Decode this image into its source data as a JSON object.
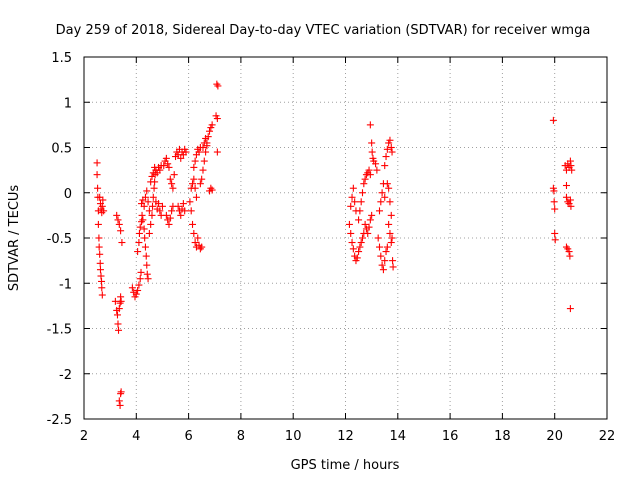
{
  "chart_data": {
    "type": "scatter",
    "title": "Day 259 of 2018, Sidereal Day-to-day VTEC variation (SDTVAR) for receiver wmga",
    "xlabel": "GPS time / hours",
    "ylabel": "SDTVAR / TECUs",
    "xlim": [
      2,
      22
    ],
    "ylim": [
      -2.5,
      1.5
    ],
    "xticks": [
      2,
      4,
      6,
      8,
      10,
      12,
      14,
      16,
      18,
      20,
      22
    ],
    "yticks": [
      -2.5,
      -2,
      -1.5,
      -1,
      -0.5,
      0,
      0.5,
      1,
      1.5
    ],
    "xtick_labels": [
      "2",
      "4",
      "6",
      "8",
      "10",
      "12",
      "14",
      "16",
      "18",
      "20",
      "22"
    ],
    "ytick_labels": [
      "-2.5",
      "-2",
      "-1.5",
      "-1",
      "-0.5",
      "0",
      "0.5",
      "1",
      "1.5"
    ],
    "grid": true,
    "marker": "+",
    "marker_color": "#ff0000",
    "series": [
      {
        "name": "SDTVAR",
        "points": [
          [
            2.5,
            0.33
          ],
          [
            2.5,
            0.2
          ],
          [
            2.52,
            0.05
          ],
          [
            2.53,
            -0.05
          ],
          [
            2.55,
            -0.2
          ],
          [
            2.55,
            -0.35
          ],
          [
            2.57,
            -0.5
          ],
          [
            2.58,
            -0.6
          ],
          [
            2.6,
            -0.68
          ],
          [
            2.62,
            -0.78
          ],
          [
            2.63,
            -0.85
          ],
          [
            2.65,
            -0.92
          ],
          [
            2.67,
            -0.98
          ],
          [
            2.68,
            -1.05
          ],
          [
            2.7,
            -1.13
          ],
          [
            2.6,
            -0.05
          ],
          [
            2.63,
            -0.12
          ],
          [
            2.65,
            -0.18
          ],
          [
            2.68,
            -0.22
          ],
          [
            2.7,
            -0.15
          ],
          [
            2.72,
            -0.08
          ],
          [
            2.75,
            -0.2
          ],
          [
            3.2,
            -1.2
          ],
          [
            3.25,
            -1.3
          ],
          [
            3.28,
            -1.35
          ],
          [
            3.3,
            -1.45
          ],
          [
            3.32,
            -1.52
          ],
          [
            3.35,
            -1.28
          ],
          [
            3.38,
            -1.22
          ],
          [
            3.4,
            -1.15
          ],
          [
            3.42,
            -1.2
          ],
          [
            3.25,
            -0.25
          ],
          [
            3.3,
            -0.3
          ],
          [
            3.35,
            -0.35
          ],
          [
            3.4,
            -0.42
          ],
          [
            3.45,
            -0.55
          ],
          [
            3.35,
            -2.3
          ],
          [
            3.38,
            -2.35
          ],
          [
            3.4,
            -2.22
          ],
          [
            3.42,
            -2.2
          ],
          [
            3.85,
            -1.05
          ],
          [
            3.9,
            -1.1
          ],
          [
            3.95,
            -1.15
          ],
          [
            4.0,
            -1.12
          ],
          [
            4.05,
            -1.08
          ],
          [
            4.1,
            -1.02
          ],
          [
            4.15,
            -0.95
          ],
          [
            4.18,
            -0.88
          ],
          [
            4.05,
            -0.65
          ],
          [
            4.1,
            -0.55
          ],
          [
            4.12,
            -0.45
          ],
          [
            4.15,
            -0.38
          ],
          [
            4.2,
            -0.32
          ],
          [
            4.22,
            -0.25
          ],
          [
            4.25,
            -0.3
          ],
          [
            4.3,
            -0.4
          ],
          [
            4.32,
            -0.5
          ],
          [
            4.35,
            -0.6
          ],
          [
            4.38,
            -0.7
          ],
          [
            4.4,
            -0.8
          ],
          [
            4.42,
            -0.9
          ],
          [
            4.45,
            -0.95
          ],
          [
            4.2,
            -0.12
          ],
          [
            4.25,
            -0.08
          ],
          [
            4.3,
            -0.15
          ],
          [
            4.35,
            -0.05
          ],
          [
            4.4,
            0.02
          ],
          [
            4.45,
            -0.1
          ],
          [
            4.5,
            -0.2
          ],
          [
            4.5,
            -0.45
          ],
          [
            4.55,
            -0.35
          ],
          [
            4.6,
            -0.25
          ],
          [
            4.62,
            -0.15
          ],
          [
            4.65,
            -0.05
          ],
          [
            4.68,
            0.05
          ],
          [
            4.7,
            0.12
          ],
          [
            4.72,
            0.2
          ],
          [
            4.75,
            0.25
          ],
          [
            4.8,
            0.22
          ],
          [
            4.85,
            0.28
          ],
          [
            4.9,
            0.25
          ],
          [
            4.95,
            0.3
          ],
          [
            4.55,
            0.12
          ],
          [
            4.6,
            0.18
          ],
          [
            4.65,
            0.22
          ],
          [
            4.7,
            0.28
          ],
          [
            4.75,
            -0.1
          ],
          [
            4.8,
            -0.18
          ],
          [
            4.85,
            -0.12
          ],
          [
            4.9,
            -0.2
          ],
          [
            4.95,
            -0.25
          ],
          [
            5.0,
            -0.15
          ],
          [
            5.05,
            0.3
          ],
          [
            5.1,
            0.35
          ],
          [
            5.15,
            0.38
          ],
          [
            5.2,
            0.32
          ],
          [
            5.25,
            0.28
          ],
          [
            5.15,
            -0.25
          ],
          [
            5.2,
            -0.3
          ],
          [
            5.25,
            -0.35
          ],
          [
            5.3,
            -0.28
          ],
          [
            5.35,
            -0.2
          ],
          [
            5.4,
            -0.15
          ],
          [
            5.3,
            0.15
          ],
          [
            5.35,
            0.1
          ],
          [
            5.4,
            0.05
          ],
          [
            5.45,
            0.2
          ],
          [
            5.5,
            0.4
          ],
          [
            5.55,
            0.45
          ],
          [
            5.6,
            0.42
          ],
          [
            5.65,
            0.48
          ],
          [
            5.7,
            0.38
          ],
          [
            5.75,
            0.45
          ],
          [
            5.8,
            0.42
          ],
          [
            5.85,
            0.48
          ],
          [
            5.9,
            0.45
          ],
          [
            5.6,
            -0.15
          ],
          [
            5.65,
            -0.2
          ],
          [
            5.7,
            -0.25
          ],
          [
            5.75,
            -0.18
          ],
          [
            5.8,
            -0.12
          ],
          [
            5.85,
            -0.2
          ],
          [
            6.05,
            -0.1
          ],
          [
            6.1,
            -0.2
          ],
          [
            6.15,
            -0.35
          ],
          [
            6.2,
            -0.45
          ],
          [
            6.25,
            -0.55
          ],
          [
            6.3,
            -0.6
          ],
          [
            6.35,
            -0.5
          ],
          [
            6.4,
            -0.58
          ],
          [
            6.45,
            -0.62
          ],
          [
            6.5,
            -0.6
          ],
          [
            6.1,
            0.05
          ],
          [
            6.15,
            0.1
          ],
          [
            6.2,
            0.15
          ],
          [
            6.25,
            0.05
          ],
          [
            6.3,
            -0.05
          ],
          [
            6.2,
            0.28
          ],
          [
            6.25,
            0.35
          ],
          [
            6.3,
            0.42
          ],
          [
            6.35,
            0.48
          ],
          [
            6.4,
            0.45
          ],
          [
            6.45,
            0.5
          ],
          [
            6.45,
            0.1
          ],
          [
            6.5,
            0.15
          ],
          [
            6.55,
            0.25
          ],
          [
            6.6,
            0.35
          ],
          [
            6.65,
            0.45
          ],
          [
            6.7,
            0.55
          ],
          [
            6.75,
            0.62
          ],
          [
            6.8,
            0.68
          ],
          [
            6.85,
            0.72
          ],
          [
            6.9,
            0.75
          ],
          [
            6.55,
            0.5
          ],
          [
            6.6,
            0.55
          ],
          [
            6.65,
            0.6
          ],
          [
            6.7,
            0.52
          ],
          [
            6.8,
            0.02
          ],
          [
            6.85,
            0.05
          ],
          [
            6.9,
            0.03
          ],
          [
            7.08,
            1.2
          ],
          [
            7.12,
            1.18
          ],
          [
            7.05,
            0.85
          ],
          [
            7.1,
            0.82
          ],
          [
            7.1,
            0.45
          ],
          [
            12.15,
            -0.35
          ],
          [
            12.2,
            -0.45
          ],
          [
            12.25,
            -0.55
          ],
          [
            12.3,
            -0.62
          ],
          [
            12.35,
            -0.7
          ],
          [
            12.4,
            -0.75
          ],
          [
            12.45,
            -0.72
          ],
          [
            12.5,
            -0.65
          ],
          [
            12.55,
            -0.6
          ],
          [
            12.6,
            -0.55
          ],
          [
            12.65,
            -0.5
          ],
          [
            12.7,
            -0.45
          ],
          [
            12.2,
            -0.15
          ],
          [
            12.25,
            -0.05
          ],
          [
            12.3,
            0.05
          ],
          [
            12.35,
            -0.1
          ],
          [
            12.4,
            -0.2
          ],
          [
            12.5,
            -0.3
          ],
          [
            12.55,
            -0.2
          ],
          [
            12.6,
            -0.1
          ],
          [
            12.65,
            0.0
          ],
          [
            12.7,
            0.1
          ],
          [
            12.75,
            0.15
          ],
          [
            12.8,
            0.2
          ],
          [
            12.85,
            0.22
          ],
          [
            12.9,
            0.25
          ],
          [
            12.95,
            0.2
          ],
          [
            12.75,
            -0.35
          ],
          [
            12.8,
            -0.4
          ],
          [
            12.85,
            -0.45
          ],
          [
            12.9,
            -0.38
          ],
          [
            12.95,
            -0.3
          ],
          [
            13.0,
            -0.25
          ],
          [
            12.95,
            0.75
          ],
          [
            13.0,
            0.55
          ],
          [
            13.02,
            0.45
          ],
          [
            13.05,
            0.38
          ],
          [
            13.08,
            0.35
          ],
          [
            13.15,
            0.32
          ],
          [
            13.2,
            0.25
          ],
          [
            13.25,
            -0.5
          ],
          [
            13.3,
            -0.6
          ],
          [
            13.35,
            -0.7
          ],
          [
            13.4,
            -0.8
          ],
          [
            13.45,
            -0.85
          ],
          [
            13.5,
            -0.75
          ],
          [
            13.55,
            -0.65
          ],
          [
            13.6,
            -0.6
          ],
          [
            13.3,
            -0.2
          ],
          [
            13.35,
            -0.1
          ],
          [
            13.4,
            0.0
          ],
          [
            13.45,
            0.1
          ],
          [
            13.5,
            -0.05
          ],
          [
            13.5,
            0.3
          ],
          [
            13.55,
            0.4
          ],
          [
            13.6,
            0.48
          ],
          [
            13.65,
            0.55
          ],
          [
            13.7,
            0.58
          ],
          [
            13.75,
            0.5
          ],
          [
            13.78,
            0.45
          ],
          [
            13.6,
            0.1
          ],
          [
            13.65,
            0.05
          ],
          [
            13.7,
            -0.1
          ],
          [
            13.75,
            -0.25
          ],
          [
            13.78,
            -0.5
          ],
          [
            13.8,
            -0.75
          ],
          [
            13.82,
            -0.82
          ],
          [
            13.65,
            -0.35
          ],
          [
            13.7,
            -0.45
          ],
          [
            13.75,
            -0.55
          ],
          [
            19.95,
            0.8
          ],
          [
            19.95,
            0.05
          ],
          [
            19.97,
            0.02
          ],
          [
            19.98,
            -0.1
          ],
          [
            20.0,
            -0.18
          ],
          [
            20.0,
            -0.45
          ],
          [
            20.02,
            -0.52
          ],
          [
            20.4,
            0.3
          ],
          [
            20.45,
            0.25
          ],
          [
            20.5,
            0.32
          ],
          [
            20.55,
            0.28
          ],
          [
            20.6,
            0.35
          ],
          [
            20.62,
            0.3
          ],
          [
            20.65,
            0.25
          ],
          [
            20.45,
            0.08
          ],
          [
            20.45,
            -0.05
          ],
          [
            20.5,
            -0.1
          ],
          [
            20.55,
            -0.12
          ],
          [
            20.6,
            -0.08
          ],
          [
            20.62,
            -0.15
          ],
          [
            20.45,
            -0.6
          ],
          [
            20.5,
            -0.62
          ],
          [
            20.55,
            -0.65
          ],
          [
            20.58,
            -0.7
          ],
          [
            20.6,
            -1.28
          ]
        ]
      }
    ]
  }
}
